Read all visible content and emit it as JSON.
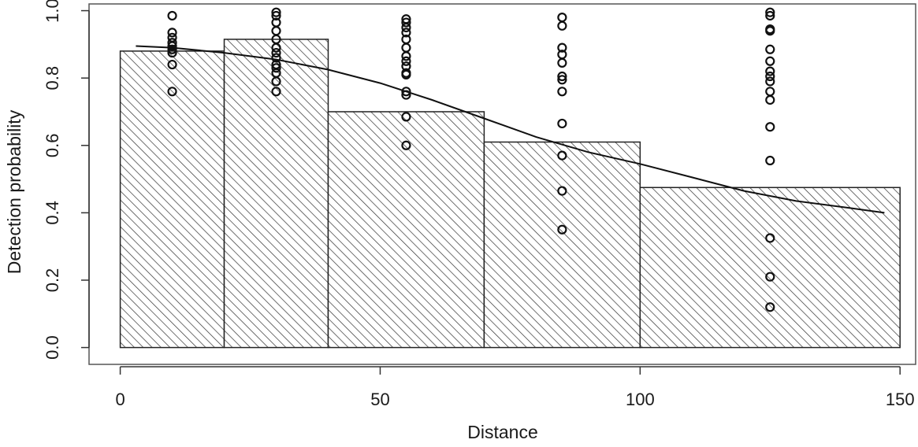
{
  "chart_data": {
    "type": "bar",
    "title": "",
    "xlabel": "Distance",
    "ylabel": "Detection probability",
    "xlim": [
      -6,
      153
    ],
    "ylim": [
      -0.05,
      1.02
    ],
    "xticks": [
      0,
      50,
      100,
      150
    ],
    "yticks": [
      0.0,
      0.2,
      0.4,
      0.6,
      0.8,
      1.0
    ],
    "xtick_labels": [
      "0",
      "50",
      "100",
      "150"
    ],
    "ytick_labels": [
      "0.0",
      "0.2",
      "0.4",
      "0.6",
      "0.8",
      "1.0"
    ],
    "grid": false,
    "bars": [
      {
        "x0": 0,
        "x1": 20,
        "value": 0.88
      },
      {
        "x0": 20,
        "x1": 40,
        "value": 0.915
      },
      {
        "x0": 40,
        "x1": 70,
        "value": 0.7
      },
      {
        "x0": 70,
        "x1": 100,
        "value": 0.61
      },
      {
        "x0": 100,
        "x1": 150,
        "value": 0.475
      }
    ],
    "fitted_curve": {
      "x": [
        3,
        10,
        20,
        30,
        40,
        50,
        60,
        70,
        80,
        90,
        100,
        110,
        120,
        130,
        140,
        147
      ],
      "y": [
        0.895,
        0.89,
        0.875,
        0.855,
        0.825,
        0.785,
        0.735,
        0.68,
        0.625,
        0.58,
        0.545,
        0.505,
        0.465,
        0.435,
        0.415,
        0.4
      ]
    },
    "points": [
      {
        "x": 10,
        "y": [
          0.985,
          0.935,
          0.92,
          0.905,
          0.895,
          0.885,
          0.875,
          0.84,
          0.76
        ]
      },
      {
        "x": 30,
        "y": [
          0.995,
          0.985,
          0.965,
          0.94,
          0.915,
          0.89,
          0.875,
          0.86,
          0.84,
          0.83,
          0.815,
          0.79,
          0.76
        ]
      },
      {
        "x": 55,
        "y": [
          0.975,
          0.965,
          0.95,
          0.935,
          0.915,
          0.89,
          0.865,
          0.85,
          0.835,
          0.815,
          0.81,
          0.76,
          0.75,
          0.685,
          0.6
        ]
      },
      {
        "x": 85,
        "y": [
          0.98,
          0.955,
          0.89,
          0.87,
          0.845,
          0.805,
          0.795,
          0.76,
          0.665,
          0.57,
          0.465,
          0.35
        ]
      },
      {
        "x": 125,
        "y": [
          0.995,
          0.985,
          0.945,
          0.94,
          0.885,
          0.85,
          0.82,
          0.805,
          0.79,
          0.76,
          0.735,
          0.655,
          0.555,
          0.325,
          0.21,
          0.12
        ]
      }
    ]
  }
}
